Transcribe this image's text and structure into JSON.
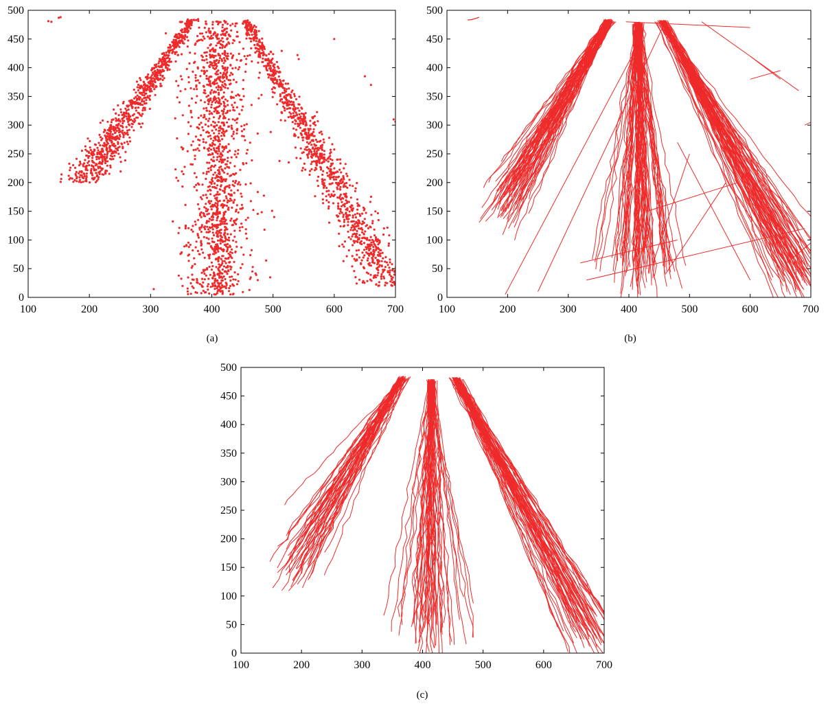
{
  "figure": {
    "accent_color": "#ee2a2a",
    "panels": [
      {
        "label": "(a)",
        "kind": "points"
      },
      {
        "label": "(b)",
        "kind": "lines"
      },
      {
        "label": "(c)",
        "kind": "lines"
      }
    ]
  },
  "chart_data": [
    {
      "type": "scatter",
      "panel_label": "(a)",
      "title": "",
      "xlabel": "",
      "ylabel": "",
      "xlim": [
        100,
        700
      ],
      "ylim": [
        0,
        500
      ],
      "xticks": [
        100,
        200,
        300,
        400,
        500,
        600,
        700
      ],
      "yticks": [
        0,
        50,
        100,
        150,
        200,
        250,
        300,
        350,
        400,
        450,
        500
      ],
      "grid": false,
      "marker_color": "#ee2a2a",
      "clusters": [
        {
          "name": "",
          "from": [
            368,
            485
          ],
          "to": [
            190,
            200
          ],
          "spread": 24,
          "count": 900
        },
        {
          "name": "",
          "from": [
            412,
            482
          ],
          "to": [
            408,
            60
          ],
          "spread": 40,
          "count": 1400
        },
        {
          "name": "",
          "from": [
            455,
            483
          ],
          "to": [
            690,
            20
          ],
          "spread": 30,
          "count": 1100
        }
      ],
      "outliers": [
        [
          133,
          481
        ],
        [
          138,
          480
        ],
        [
          150,
          487
        ],
        [
          153,
          488
        ],
        [
          540,
          422
        ],
        [
          542,
          415
        ],
        [
          565,
          312
        ],
        [
          568,
          305
        ],
        [
          697,
          310
        ],
        [
          700,
          306
        ],
        [
          650,
          385
        ],
        [
          660,
          370
        ],
        [
          600,
          450
        ]
      ]
    },
    {
      "type": "line",
      "panel_label": "(b)",
      "title": "",
      "xlabel": "",
      "ylabel": "",
      "xlim": [
        100,
        700
      ],
      "ylim": [
        0,
        500
      ],
      "xticks": [
        100,
        200,
        300,
        400,
        500,
        600,
        700
      ],
      "yticks": [
        0,
        50,
        100,
        150,
        200,
        250,
        300,
        350,
        400,
        450,
        500
      ],
      "grid": false,
      "line_color": "#ee2a2a",
      "bundles": [
        {
          "name": "",
          "from": [
            368,
            485
          ],
          "to": [
            195,
            170
          ],
          "count": 60
        },
        {
          "name": "",
          "from": [
            415,
            480
          ],
          "to": [
            415,
            40
          ],
          "count": 70
        },
        {
          "name": "",
          "from": [
            455,
            483
          ],
          "to": [
            680,
            40
          ],
          "count": 70
        }
      ],
      "stray_segments": [
        [
          [
            196,
            5
          ],
          [
            410,
            430
          ]
        ],
        [
          [
            330,
            30
          ],
          [
            690,
            120
          ]
        ],
        [
          [
            430,
            150
          ],
          [
            580,
            200
          ]
        ],
        [
          [
            520,
            480
          ],
          [
            680,
            360
          ]
        ],
        [
          [
            600,
            420
          ],
          [
            650,
            380
          ]
        ],
        [
          [
            690,
            300
          ],
          [
            700,
            305
          ]
        ],
        [
          [
            250,
            10
          ],
          [
            460,
            480
          ]
        ],
        [
          [
            320,
            60
          ],
          [
            480,
            100
          ]
        ],
        [
          [
            660,
            60
          ],
          [
            700,
            95
          ]
        ],
        [
          [
            600,
            380
          ],
          [
            650,
            395
          ]
        ],
        [
          [
            395,
            480
          ],
          [
            600,
            470
          ]
        ],
        [
          [
            500,
            250
          ],
          [
            440,
            60
          ]
        ],
        [
          [
            560,
            200
          ],
          [
            460,
            40
          ]
        ],
        [
          [
            480,
            270
          ],
          [
            600,
            30
          ]
        ]
      ],
      "short_track": [
        [
          134,
          483
        ],
        [
          141,
          484
        ],
        [
          148,
          486
        ],
        [
          153,
          488
        ]
      ]
    },
    {
      "type": "line",
      "panel_label": "(c)",
      "title": "",
      "xlabel": "",
      "ylabel": "",
      "xlim": [
        100,
        700
      ],
      "ylim": [
        0,
        500
      ],
      "xticks": [
        100,
        200,
        300,
        400,
        500,
        600,
        700
      ],
      "yticks": [
        0,
        50,
        100,
        150,
        200,
        250,
        300,
        350,
        400,
        450,
        500
      ],
      "grid": false,
      "line_color": "#ee2a2a",
      "bundles": [
        {
          "name": "",
          "from": [
            368,
            485
          ],
          "to": [
            195,
            165
          ],
          "count": 45
        },
        {
          "name": "",
          "from": [
            415,
            480
          ],
          "to": [
            410,
            35
          ],
          "count": 50
        },
        {
          "name": "",
          "from": [
            455,
            483
          ],
          "to": [
            680,
            30
          ],
          "count": 55
        }
      ]
    }
  ]
}
